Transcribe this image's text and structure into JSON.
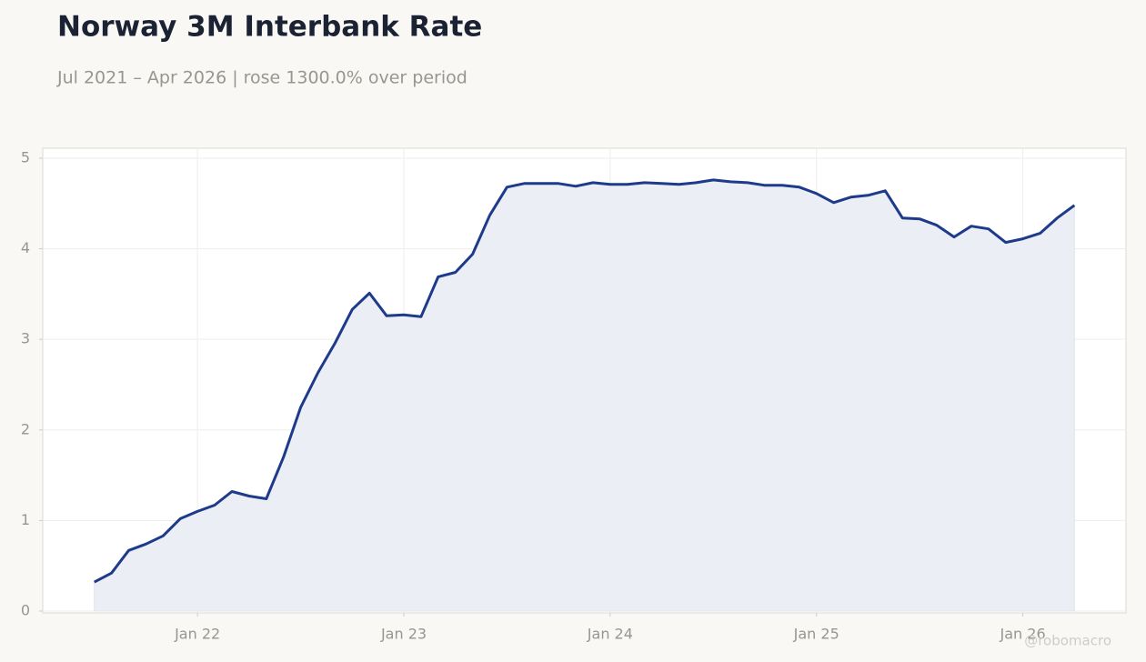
{
  "chart_data": {
    "type": "line",
    "title": "Norway 3M Interbank Rate",
    "subtitle": "Jul 2021 – Apr 2026 | rose 1300.0% over period",
    "watermark": "@robomacro",
    "x": [
      "2021-07",
      "2021-08",
      "2021-09",
      "2021-10",
      "2021-11",
      "2021-12",
      "2022-01",
      "2022-02",
      "2022-03",
      "2022-04",
      "2022-05",
      "2022-06",
      "2022-07",
      "2022-08",
      "2022-09",
      "2022-10",
      "2022-11",
      "2022-12",
      "2023-01",
      "2023-02",
      "2023-03",
      "2023-04",
      "2023-05",
      "2023-06",
      "2023-07",
      "2023-08",
      "2023-09",
      "2023-10",
      "2023-11",
      "2023-12",
      "2024-01",
      "2024-02",
      "2024-03",
      "2024-04",
      "2024-05",
      "2024-06",
      "2024-07",
      "2024-08",
      "2024-09",
      "2024-10",
      "2024-11",
      "2024-12",
      "2025-01",
      "2025-02",
      "2025-03",
      "2025-04",
      "2025-05",
      "2025-06",
      "2025-07",
      "2025-08",
      "2025-09",
      "2025-10",
      "2025-11",
      "2025-12",
      "2026-01",
      "2026-02",
      "2026-03",
      "2026-04"
    ],
    "series": [
      {
        "color": "#1e3a8a",
        "fill": "#eceef5",
        "values": [
          0.32,
          0.42,
          0.67,
          0.74,
          0.83,
          1.02,
          1.1,
          1.17,
          1.32,
          1.27,
          1.24,
          1.7,
          2.25,
          2.63,
          2.96,
          3.33,
          3.51,
          3.26,
          3.27,
          3.25,
          3.69,
          3.74,
          3.94,
          4.37,
          4.68,
          4.72,
          4.72,
          4.72,
          4.69,
          4.73,
          4.71,
          4.71,
          4.73,
          4.72,
          4.71,
          4.73,
          4.76,
          4.74,
          4.73,
          4.7,
          4.7,
          4.68,
          4.61,
          4.51,
          4.57,
          4.59,
          4.64,
          4.34,
          4.33,
          4.26,
          4.13,
          4.25,
          4.22,
          4.07,
          4.11,
          4.17,
          4.34,
          4.48
        ]
      }
    ],
    "xlim": [
      "2021-04",
      "2026-07"
    ],
    "xticks": [
      {
        "value": "2022-01",
        "label": "Jan 22"
      },
      {
        "value": "2023-01",
        "label": "Jan 23"
      },
      {
        "value": "2024-01",
        "label": "Jan 24"
      },
      {
        "value": "2025-01",
        "label": "Jan 25"
      },
      {
        "value": "2026-01",
        "label": "Jan 26"
      }
    ],
    "ylim": [
      -0.02,
      5.11
    ],
    "yticks": [
      0,
      1,
      2,
      3,
      4,
      5
    ],
    "grid": true
  }
}
